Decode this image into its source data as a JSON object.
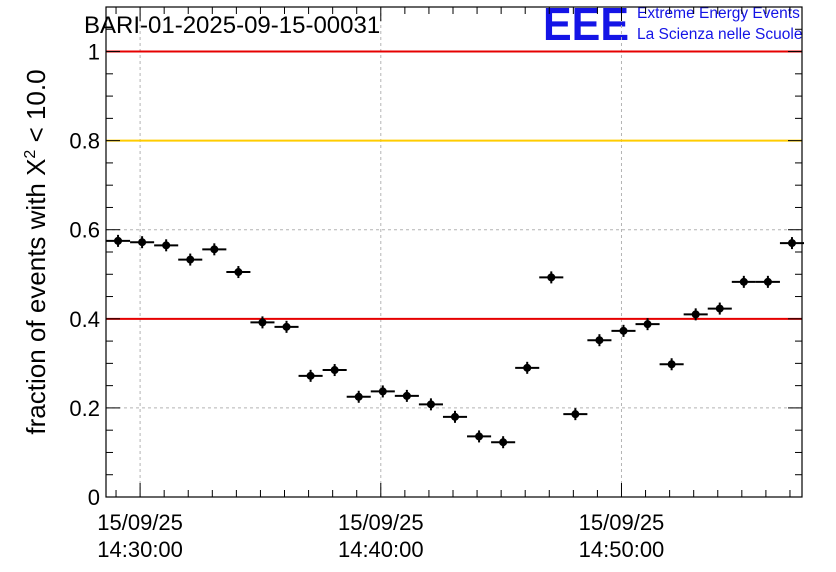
{
  "chart_data": {
    "type": "scatter",
    "title": "BARI-01-2025-09-15-00031",
    "ylabel": {
      "prefix": "fraction of events with ",
      "symbol": "X",
      "superscript": "2",
      "suffix": " < 10.0"
    },
    "xlabel": "",
    "x_range": [
      "14:28:35",
      "14:57:30"
    ],
    "ylim": [
      0,
      1.1
    ],
    "yticks": [
      "0",
      "0.2",
      "0.4",
      "0.6",
      "0.8",
      "1"
    ],
    "xticks": [
      {
        "time": "14:30:00",
        "date_label": "15/09/25",
        "time_label": "14:30:00"
      },
      {
        "time": "14:40:00",
        "date_label": "15/09/25",
        "time_label": "14:40:00"
      },
      {
        "time": "14:50:00",
        "date_label": "15/09/25",
        "time_label": "14:50:00"
      }
    ],
    "grid": true,
    "reference_lines": [
      {
        "y": 1.0,
        "color": "#e60000"
      },
      {
        "y": 0.8,
        "color": "#ffcc00"
      },
      {
        "y": 0.4,
        "color": "#e60000"
      }
    ],
    "series": [
      {
        "marker": "circle",
        "color": "#000000",
        "x_bin_minutes": 1,
        "points": [
          {
            "x": "14:29:05",
            "y": 0.575
          },
          {
            "x": "14:30:05",
            "y": 0.572
          },
          {
            "x": "14:31:05",
            "y": 0.565
          },
          {
            "x": "14:32:05",
            "y": 0.533
          },
          {
            "x": "14:33:05",
            "y": 0.556
          },
          {
            "x": "14:34:05",
            "y": 0.505
          },
          {
            "x": "14:35:05",
            "y": 0.392
          },
          {
            "x": "14:36:05",
            "y": 0.382
          },
          {
            "x": "14:37:05",
            "y": 0.272
          },
          {
            "x": "14:38:05",
            "y": 0.285
          },
          {
            "x": "14:39:05",
            "y": 0.225
          },
          {
            "x": "14:40:05",
            "y": 0.237
          },
          {
            "x": "14:41:05",
            "y": 0.227
          },
          {
            "x": "14:42:05",
            "y": 0.208
          },
          {
            "x": "14:43:05",
            "y": 0.18
          },
          {
            "x": "14:44:05",
            "y": 0.136
          },
          {
            "x": "14:45:05",
            "y": 0.123
          },
          {
            "x": "14:46:05",
            "y": 0.29
          },
          {
            "x": "14:47:05",
            "y": 0.493
          },
          {
            "x": "14:48:05",
            "y": 0.186
          },
          {
            "x": "14:49:05",
            "y": 0.352
          },
          {
            "x": "14:50:05",
            "y": 0.373
          },
          {
            "x": "14:51:05",
            "y": 0.388
          },
          {
            "x": "14:52:05",
            "y": 0.298
          },
          {
            "x": "14:53:05",
            "y": 0.41
          },
          {
            "x": "14:54:05",
            "y": 0.423
          },
          {
            "x": "14:55:05",
            "y": 0.483
          },
          {
            "x": "14:56:05",
            "y": 0.483
          },
          {
            "x": "14:57:05",
            "y": 0.57
          }
        ]
      }
    ]
  },
  "logo": {
    "letters": "EEE",
    "line1": "Extreme Energy Events",
    "line2": "La Scienza nelle Scuole",
    "color": "#1414e6"
  }
}
